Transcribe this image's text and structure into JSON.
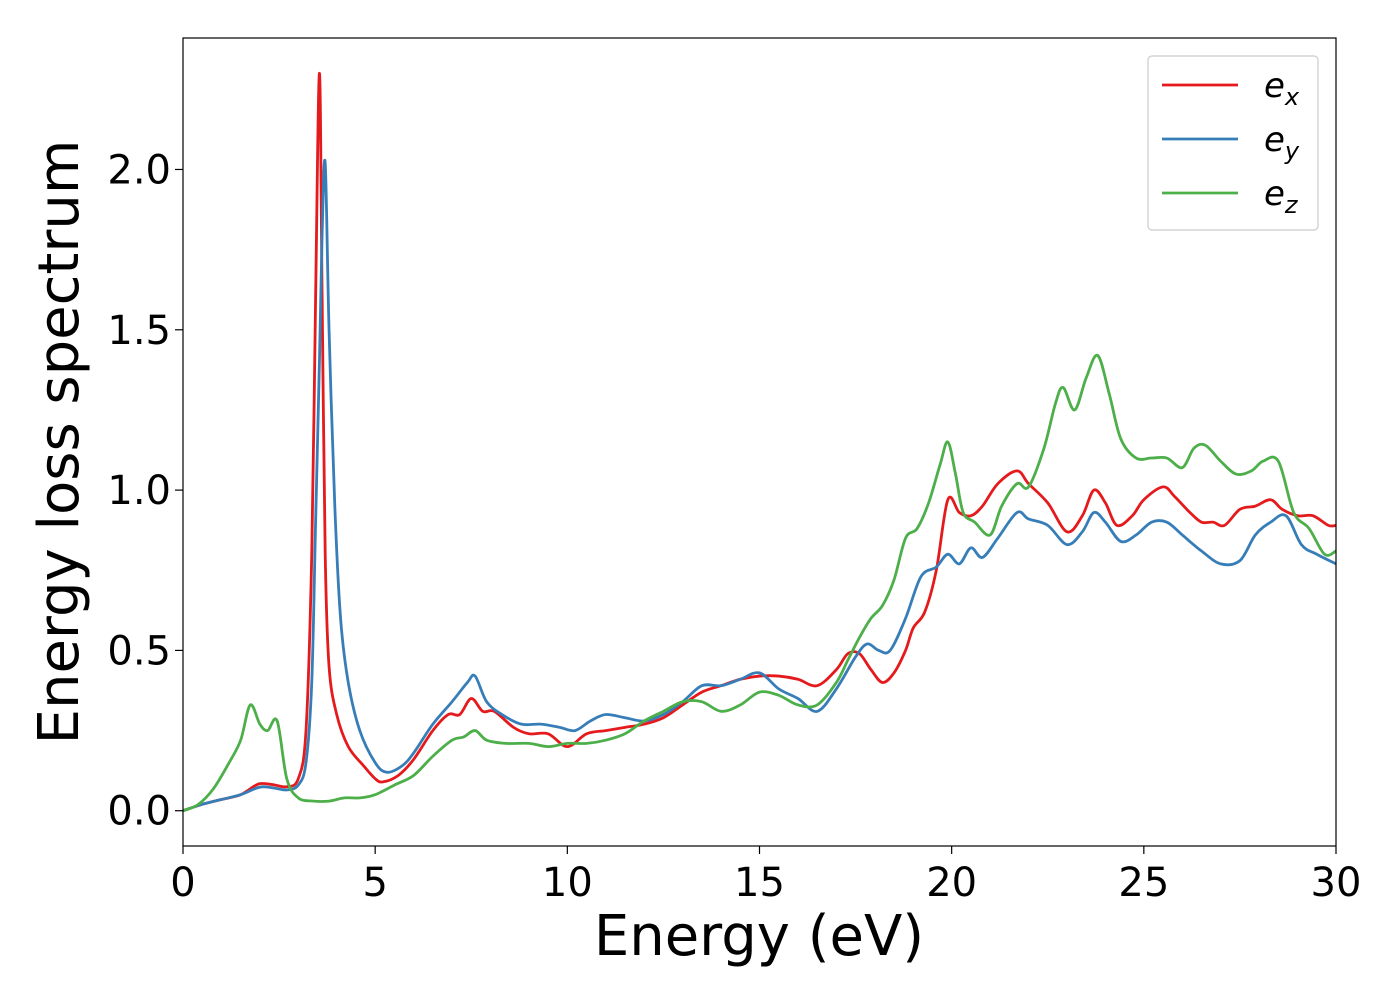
{
  "chart_data": {
    "type": "line",
    "title": "",
    "xlabel": "Energy (eV)",
    "ylabel": "Energy loss spectrum",
    "xlim": [
      0,
      30
    ],
    "ylim": [
      -0.11,
      2.41
    ],
    "xticks": [
      0,
      5,
      10,
      15,
      20,
      25,
      30
    ],
    "xtick_labels": [
      "0",
      "5",
      "10",
      "15",
      "20",
      "25",
      "30"
    ],
    "yticks": [
      0.0,
      0.5,
      1.0,
      1.5,
      2.0
    ],
    "ytick_labels": [
      "0.0",
      "0.5",
      "1.0",
      "1.5",
      "2.0"
    ],
    "grid": false,
    "legend_position": "top-right",
    "series": [
      {
        "name": "e_x",
        "legend": {
          "base": "e",
          "sub": "x"
        },
        "color": "#e41a1c",
        "x": [
          0,
          0.5,
          1.0,
          1.5,
          1.9,
          2.1,
          2.4,
          2.7,
          3.0,
          3.2,
          3.35,
          3.45,
          3.55,
          3.62,
          3.7,
          3.8,
          4.0,
          4.3,
          4.7,
          5.0,
          5.2,
          5.6,
          6.0,
          6.5,
          6.9,
          7.2,
          7.5,
          7.8,
          8.1,
          8.6,
          9.0,
          9.5,
          10.0,
          10.5,
          11.0,
          11.5,
          12.0,
          12.5,
          13.0,
          13.5,
          14.0,
          14.5,
          15.0,
          15.5,
          16.0,
          16.5,
          17.0,
          17.3,
          17.6,
          17.9,
          18.2,
          18.5,
          18.8,
          19.0,
          19.3,
          19.6,
          19.9,
          20.2,
          20.5,
          20.8,
          21.2,
          21.7,
          22.0,
          22.5,
          23.0,
          23.4,
          23.7,
          24.0,
          24.3,
          24.7,
          25.0,
          25.5,
          25.8,
          26.2,
          26.5,
          26.8,
          27.1,
          27.5,
          27.9,
          28.3,
          28.6,
          29.0,
          29.4,
          29.8,
          30.0
        ],
        "y": [
          0.0,
          0.02,
          0.035,
          0.05,
          0.08,
          0.085,
          0.08,
          0.075,
          0.1,
          0.25,
          0.8,
          1.6,
          2.3,
          1.6,
          0.8,
          0.45,
          0.3,
          0.2,
          0.14,
          0.1,
          0.09,
          0.11,
          0.16,
          0.25,
          0.3,
          0.3,
          0.35,
          0.31,
          0.31,
          0.26,
          0.24,
          0.24,
          0.2,
          0.24,
          0.25,
          0.26,
          0.27,
          0.29,
          0.33,
          0.37,
          0.39,
          0.41,
          0.42,
          0.42,
          0.41,
          0.39,
          0.44,
          0.49,
          0.49,
          0.44,
          0.4,
          0.43,
          0.5,
          0.57,
          0.62,
          0.75,
          0.97,
          0.93,
          0.92,
          0.95,
          1.02,
          1.06,
          1.02,
          0.96,
          0.87,
          0.92,
          1.0,
          0.96,
          0.89,
          0.92,
          0.97,
          1.01,
          0.98,
          0.93,
          0.9,
          0.9,
          0.89,
          0.94,
          0.95,
          0.97,
          0.94,
          0.92,
          0.92,
          0.89,
          0.89
        ]
      },
      {
        "name": "e_y",
        "legend": {
          "base": "e",
          "sub": "y"
        },
        "color": "#377eb8",
        "x": [
          0,
          0.5,
          1.0,
          1.5,
          1.9,
          2.1,
          2.4,
          2.7,
          3.0,
          3.2,
          3.35,
          3.45,
          3.55,
          3.62,
          3.7,
          3.8,
          3.95,
          4.1,
          4.3,
          4.6,
          5.0,
          5.3,
          5.7,
          6.0,
          6.5,
          7.0,
          7.4,
          7.6,
          7.9,
          8.3,
          8.8,
          9.3,
          9.8,
          10.2,
          10.6,
          11.0,
          11.5,
          12.0,
          12.5,
          13.0,
          13.5,
          14.0,
          14.5,
          15.0,
          15.5,
          16.0,
          16.5,
          17.0,
          17.5,
          17.8,
          18.1,
          18.4,
          18.8,
          19.2,
          19.6,
          19.9,
          20.2,
          20.5,
          20.8,
          21.2,
          21.7,
          22.0,
          22.5,
          23.0,
          23.4,
          23.7,
          24.0,
          24.4,
          24.8,
          25.2,
          25.6,
          26.0,
          26.5,
          27.0,
          27.5,
          27.9,
          28.3,
          28.7,
          29.1,
          29.5,
          30.0
        ],
        "y": [
          0.0,
          0.02,
          0.035,
          0.05,
          0.07,
          0.075,
          0.07,
          0.065,
          0.08,
          0.15,
          0.4,
          0.9,
          1.4,
          1.8,
          2.02,
          1.5,
          0.95,
          0.6,
          0.4,
          0.25,
          0.15,
          0.12,
          0.14,
          0.18,
          0.27,
          0.34,
          0.4,
          0.42,
          0.34,
          0.3,
          0.27,
          0.27,
          0.26,
          0.25,
          0.28,
          0.3,
          0.29,
          0.28,
          0.3,
          0.34,
          0.39,
          0.39,
          0.41,
          0.43,
          0.38,
          0.35,
          0.31,
          0.38,
          0.48,
          0.52,
          0.5,
          0.5,
          0.6,
          0.73,
          0.76,
          0.8,
          0.77,
          0.82,
          0.79,
          0.85,
          0.93,
          0.91,
          0.89,
          0.83,
          0.87,
          0.93,
          0.9,
          0.84,
          0.86,
          0.9,
          0.9,
          0.86,
          0.81,
          0.77,
          0.78,
          0.86,
          0.9,
          0.92,
          0.83,
          0.8,
          0.77
        ]
      },
      {
        "name": "e_z",
        "legend": {
          "base": "e",
          "sub": "z"
        },
        "color": "#4daf4a",
        "x": [
          0,
          0.4,
          0.8,
          1.2,
          1.5,
          1.75,
          2.0,
          2.2,
          2.45,
          2.7,
          3.0,
          3.4,
          3.8,
          4.2,
          4.6,
          5.0,
          5.5,
          6.0,
          6.5,
          7.0,
          7.3,
          7.6,
          7.9,
          8.4,
          9.0,
          9.5,
          10.0,
          10.5,
          11.0,
          11.5,
          12.0,
          12.5,
          13.0,
          13.5,
          14.0,
          14.5,
          15.0,
          15.5,
          16.0,
          16.5,
          17.0,
          17.3,
          17.6,
          17.9,
          18.2,
          18.5,
          18.8,
          19.1,
          19.4,
          19.7,
          19.9,
          20.1,
          20.3,
          20.6,
          21.0,
          21.3,
          21.7,
          22.0,
          22.4,
          22.7,
          22.9,
          23.2,
          23.5,
          23.8,
          24.1,
          24.4,
          24.8,
          25.2,
          25.6,
          26.0,
          26.3,
          26.6,
          27.0,
          27.4,
          27.8,
          28.1,
          28.5,
          28.9,
          29.3,
          29.7,
          30.0
        ],
        "y": [
          0.0,
          0.02,
          0.07,
          0.15,
          0.22,
          0.33,
          0.27,
          0.25,
          0.28,
          0.1,
          0.04,
          0.03,
          0.03,
          0.04,
          0.04,
          0.05,
          0.08,
          0.11,
          0.17,
          0.22,
          0.23,
          0.25,
          0.22,
          0.21,
          0.21,
          0.2,
          0.21,
          0.21,
          0.22,
          0.24,
          0.28,
          0.31,
          0.34,
          0.34,
          0.31,
          0.33,
          0.37,
          0.36,
          0.33,
          0.33,
          0.4,
          0.47,
          0.54,
          0.6,
          0.64,
          0.72,
          0.85,
          0.88,
          0.96,
          1.08,
          1.15,
          1.05,
          0.93,
          0.9,
          0.86,
          0.95,
          1.02,
          1.01,
          1.13,
          1.27,
          1.32,
          1.25,
          1.35,
          1.42,
          1.3,
          1.16,
          1.1,
          1.1,
          1.1,
          1.07,
          1.13,
          1.14,
          1.09,
          1.05,
          1.06,
          1.09,
          1.09,
          0.93,
          0.88,
          0.8,
          0.81
        ]
      }
    ]
  }
}
